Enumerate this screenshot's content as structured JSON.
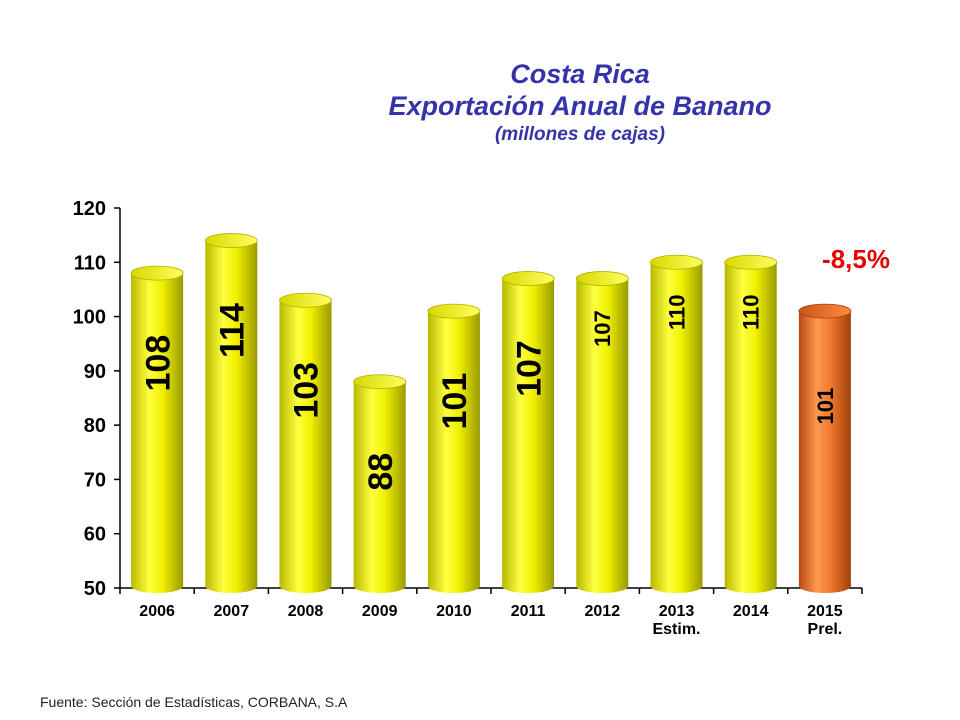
{
  "header": {
    "title_line1": "Costa Rica",
    "title_line2": "Exportación Anual de Banano",
    "subtitle": "(millones de cajas)"
  },
  "footer": {
    "source": "Fuente: Sección de Estadísticas, CORBANA, S.A"
  },
  "chart_data": {
    "type": "bar",
    "title": "Costa Rica Exportación Anual de Banano",
    "subtitle": "(millones de cajas)",
    "categories": [
      "2006",
      "2007",
      "2008",
      "2009",
      "2010",
      "2011",
      "2012",
      "2013 Estim.",
      "2014",
      "2015 Prel."
    ],
    "category_labels": [
      [
        "2006"
      ],
      [
        "2007"
      ],
      [
        "2008"
      ],
      [
        "2009"
      ],
      [
        "2010"
      ],
      [
        "2011"
      ],
      [
        "2012"
      ],
      [
        "2013",
        "Estim."
      ],
      [
        "2014"
      ],
      [
        "2015",
        "Prel."
      ]
    ],
    "values": [
      108,
      114,
      103,
      88,
      101,
      107,
      107,
      110,
      110,
      101
    ],
    "data_labels": [
      "108",
      "114",
      "103",
      "88",
      "101",
      "107",
      "107",
      "110",
      "110",
      "101"
    ],
    "yticks": [
      50,
      60,
      70,
      80,
      90,
      100,
      110,
      120
    ],
    "ylim": [
      50,
      120
    ],
    "grid": false,
    "annotation": "-8,5%",
    "colors": {
      "default_bar": "#e8e800",
      "highlight_bar": "#e56a1e",
      "annotation": "#e60000",
      "label": "#000000"
    },
    "highlight_index": 9
  }
}
